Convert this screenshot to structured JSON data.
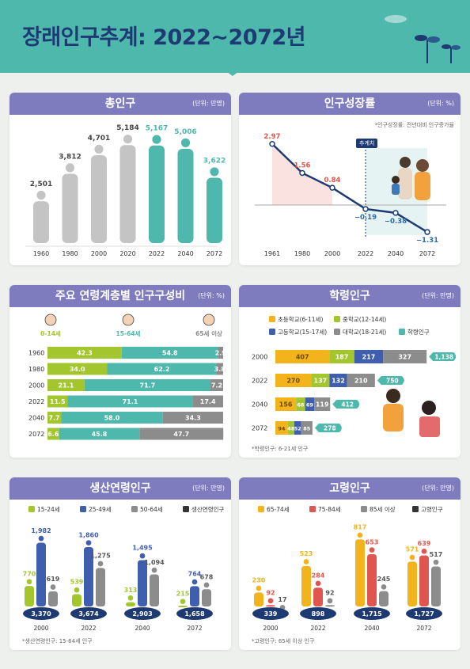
{
  "header": {
    "title": "장래인구추계: 2022~2072년"
  },
  "colors": {
    "teal": "#4fb8ad",
    "navy": "#1e3a72",
    "purple": "#7e7bbf",
    "green": "#a3c62e",
    "blue": "#3f5fae",
    "gray": "#8c8c8c",
    "lightgray": "#c4c4c4",
    "yellow": "#f2b31c",
    "red": "#e0564e",
    "orange": "#f3a13c"
  },
  "panels": {
    "total": {
      "title": "총인구",
      "unit": "(단위: 만명)"
    },
    "growth": {
      "title": "인구성장률",
      "unit": "(단위: %)",
      "note": "*인구성장률: 전년대비 인구증가율",
      "tag": "추계치"
    },
    "age": {
      "title": "주요 연령계층별 인구구성비",
      "unit": "(단위: %)",
      "groups": [
        "0-14세",
        "15-64세",
        "65세 이상"
      ]
    },
    "school": {
      "title": "학령인구",
      "unit": "(단위: 만명)",
      "foot": "*학령인구: 6-21세 인구"
    },
    "working": {
      "title": "생산연령인구",
      "unit": "(단위: 만명)",
      "foot": "*생산연령인구: 15-64세 인구"
    },
    "elderly": {
      "title": "고령인구",
      "unit": "(단위: 만명)",
      "foot": "*고령인구: 65세 이상 인구"
    }
  },
  "chart_data": [
    {
      "type": "bar",
      "title": "총인구",
      "categories": [
        "1960",
        "1980",
        "2000",
        "2020",
        "2022",
        "2040",
        "2072"
      ],
      "values": [
        2501,
        3812,
        4701,
        5184,
        5167,
        5006,
        3622
      ],
      "value_labels": [
        "2,501",
        "3,812",
        "4,701",
        "5,184",
        "5,167",
        "5,006",
        "3,622"
      ]
    },
    {
      "type": "line",
      "title": "인구성장률",
      "categories": [
        "1961",
        "1980",
        "2000",
        "2022",
        "2040",
        "2072"
      ],
      "values": [
        2.97,
        1.56,
        0.84,
        -0.19,
        -0.38,
        -1.31
      ],
      "value_labels": [
        "2.97",
        "1.56",
        "0.84",
        "−0.19",
        "−0.38",
        "−1.31"
      ]
    },
    {
      "type": "bar",
      "title": "주요 연령계층별 인구구성비",
      "categories": [
        "1960",
        "1980",
        "2000",
        "2022",
        "2040",
        "2072"
      ],
      "series": [
        {
          "name": "0-14세",
          "values": [
            42.3,
            34.0,
            21.1,
            11.5,
            7.7,
            6.6
          ],
          "labels": [
            "42.3",
            "34.0",
            "21.1",
            "11.5",
            "7.7",
            "6.6"
          ]
        },
        {
          "name": "15-64세",
          "values": [
            54.8,
            62.2,
            71.7,
            71.1,
            58.0,
            45.8
          ],
          "labels": [
            "54.8",
            "62.2",
            "71.7",
            "71.1",
            "58.0",
            "45.8"
          ]
        },
        {
          "name": "65세 이상",
          "values": [
            2.9,
            3.8,
            7.2,
            17.4,
            34.3,
            47.7
          ],
          "labels": [
            "2.9",
            "3.8",
            "7.2",
            "17.4",
            "34.3",
            "47.7"
          ]
        }
      ]
    },
    {
      "type": "bar",
      "title": "학령인구",
      "categories": [
        "2000",
        "2022",
        "2040",
        "2072"
      ],
      "series": [
        {
          "name": "초등학교(6-11세)",
          "values": [
            407,
            270,
            156,
            94
          ]
        },
        {
          "name": "중학교(12-14세)",
          "values": [
            187,
            137,
            68,
            48
          ]
        },
        {
          "name": "고등학교(15-17세)",
          "values": [
            217,
            132,
            69,
            52
          ]
        },
        {
          "name": "대학교(18-21세)",
          "values": [
            327,
            210,
            119,
            85
          ]
        }
      ],
      "totals": {
        "name": "학령인구",
        "values": [
          1138,
          750,
          412,
          278
        ],
        "labels": [
          "1,138",
          "750",
          "412",
          "278"
        ]
      }
    },
    {
      "type": "bar",
      "title": "생산연령인구",
      "categories": [
        "2000",
        "2022",
        "2040",
        "2072"
      ],
      "series": [
        {
          "name": "15-24세",
          "values": [
            770,
            539,
            313,
            215
          ],
          "labels": [
            "770",
            "539",
            "313",
            "215"
          ]
        },
        {
          "name": "25-49세",
          "values": [
            1982,
            1860,
            1495,
            764
          ],
          "labels": [
            "1,982",
            "1,860",
            "1,495",
            "764"
          ]
        },
        {
          "name": "50-64세",
          "values": [
            619,
            1275,
            1094,
            678
          ],
          "labels": [
            "619",
            "1,275",
            "1,094",
            "678"
          ]
        }
      ],
      "totals": {
        "name": "생산연령인구",
        "values": [
          3370,
          3674,
          2903,
          1658
        ],
        "labels": [
          "3,370",
          "3,674",
          "2,903",
          "1,658"
        ]
      }
    },
    {
      "type": "bar",
      "title": "고령인구",
      "categories": [
        "2000",
        "2022",
        "2040",
        "2072"
      ],
      "series": [
        {
          "name": "65-74세",
          "values": [
            230,
            523,
            817,
            571
          ],
          "labels": [
            "230",
            "523",
            "817",
            "571"
          ]
        },
        {
          "name": "75-84세",
          "values": [
            92,
            284,
            653,
            639
          ],
          "labels": [
            "92",
            "284",
            "653",
            "639"
          ]
        },
        {
          "name": "85세 이상",
          "values": [
            17,
            92,
            245,
            517
          ],
          "labels": [
            "17",
            "92",
            "245",
            "517"
          ]
        }
      ],
      "totals": {
        "name": "고령인구",
        "values": [
          339,
          898,
          1715,
          1727
        ],
        "labels": [
          "339",
          "898",
          "1,715",
          "1,727"
        ]
      }
    }
  ]
}
